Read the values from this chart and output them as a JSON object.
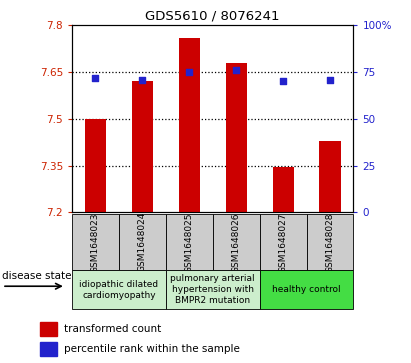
{
  "title": "GDS5610 / 8076241",
  "samples": [
    "GSM1648023",
    "GSM1648024",
    "GSM1648025",
    "GSM1648026",
    "GSM1648027",
    "GSM1648028"
  ],
  "transformed_count": [
    7.5,
    7.62,
    7.76,
    7.68,
    7.345,
    7.43
  ],
  "percentile_rank": [
    72,
    71,
    75,
    76,
    70,
    71
  ],
  "ylim_left": [
    7.2,
    7.8
  ],
  "ylim_right": [
    0,
    100
  ],
  "yticks_left": [
    7.2,
    7.35,
    7.5,
    7.65,
    7.8
  ],
  "ytick_labels_left": [
    "7.2",
    "7.35",
    "7.5",
    "7.65",
    "7.8"
  ],
  "yticks_right": [
    0,
    25,
    50,
    75,
    100
  ],
  "ytick_labels_right": [
    "0",
    "25",
    "50",
    "75",
    "100%"
  ],
  "bar_color": "#CC0000",
  "dot_color": "#2222CC",
  "bar_bottom": 7.2,
  "gridline_y": [
    7.35,
    7.5,
    7.65
  ],
  "disease_groups": [
    {
      "label": "idiopathic dilated\ncardiomyopathy",
      "span": [
        0,
        1
      ],
      "color": "#cceecc"
    },
    {
      "label": "pulmonary arterial\nhypertension with\nBMPR2 mutation",
      "span": [
        2,
        3
      ],
      "color": "#cceecc"
    },
    {
      "label": "healthy control",
      "span": [
        4,
        5
      ],
      "color": "#44dd44"
    }
  ],
  "legend_bar_label": "transformed count",
  "legend_dot_label": "percentile rank within the sample",
  "disease_state_label": "disease state",
  "tick_label_color_left": "#CC2200",
  "tick_label_color_right": "#2222CC",
  "bg_gray": "#cccccc",
  "figure_width": 4.11,
  "figure_height": 3.63,
  "dpi": 100
}
